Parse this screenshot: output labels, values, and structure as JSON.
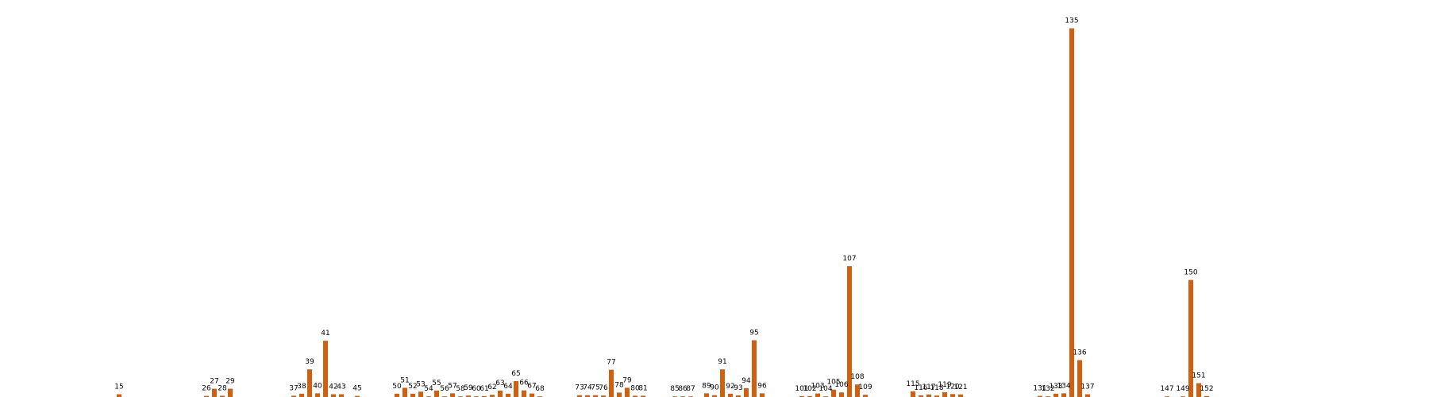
{
  "chart_data": {
    "type": "bar",
    "title": "",
    "xlabel": "",
    "ylabel": "",
    "grid": false,
    "legend": "none",
    "bar_color": "#d35f0e",
    "xlim": [
      0,
      180
    ],
    "ylim": [
      0,
      205
    ],
    "categories": [
      15,
      26,
      27,
      28,
      29,
      37,
      38,
      39,
      40,
      41,
      42,
      43,
      45,
      50,
      51,
      52,
      53,
      54,
      55,
      56,
      57,
      58,
      59,
      60,
      61,
      62,
      63,
      64,
      65,
      66,
      67,
      68,
      73,
      74,
      75,
      76,
      77,
      78,
      79,
      80,
      81,
      85,
      86,
      87,
      89,
      90,
      91,
      92,
      93,
      94,
      95,
      96,
      101,
      102,
      103,
      104,
      105,
      106,
      107,
      108,
      109,
      115,
      116,
      117,
      118,
      119,
      120,
      121,
      131,
      132,
      133,
      134,
      135,
      136,
      137,
      147,
      149,
      150,
      151,
      152
    ],
    "values": [
      1.5,
      0.6,
      4.5,
      0.7,
      4.5,
      0.7,
      1.8,
      15.0,
      2.0,
      30.5,
      1.5,
      1.5,
      0.6,
      1.8,
      5.0,
      1.8,
      2.9,
      0.3,
      3.5,
      0.3,
      2.0,
      0.2,
      0.8,
      0.2,
      0.5,
      1.2,
      3.5,
      1.8,
      8.6,
      3.6,
      1.9,
      0.3,
      1.0,
      1.0,
      1.0,
      0.8,
      14.8,
      2.4,
      5.0,
      0.7,
      0.7,
      0.1,
      0.1,
      0.1,
      2.0,
      1.0,
      15.0,
      1.8,
      0.9,
      4.8,
      30.8,
      2.0,
      0.5,
      0.5,
      1.9,
      0.3,
      4.0,
      2.5,
      71.0,
      6.8,
      1.2,
      3.1,
      0.9,
      1.4,
      0.8,
      2.6,
      1.6,
      1.4,
      0.6,
      0.2,
      1.8,
      2.0,
      200.0,
      20.0,
      1.5,
      0.1,
      0.1,
      63.5,
      7.5,
      0.5
    ]
  }
}
